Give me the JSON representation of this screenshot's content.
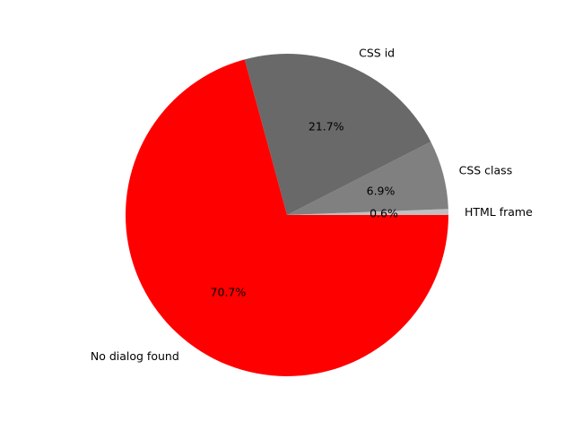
{
  "chart_data": {
    "type": "pie",
    "start_angle_deg": 0,
    "direction": "counterclockwise",
    "legend": "none",
    "slices": [
      {
        "label": "HTML frame",
        "pct_label": "0.6%",
        "value": 0.6,
        "color": "#c0c0c0"
      },
      {
        "label": "CSS class",
        "pct_label": "6.9%",
        "value": 6.9,
        "color": "#808080"
      },
      {
        "label": "CSS id",
        "pct_label": "21.7%",
        "value": 21.7,
        "color": "#696969"
      },
      {
        "label": "No dialog found",
        "pct_label": "70.7%",
        "value": 70.7,
        "color": "#ff0000"
      }
    ]
  }
}
